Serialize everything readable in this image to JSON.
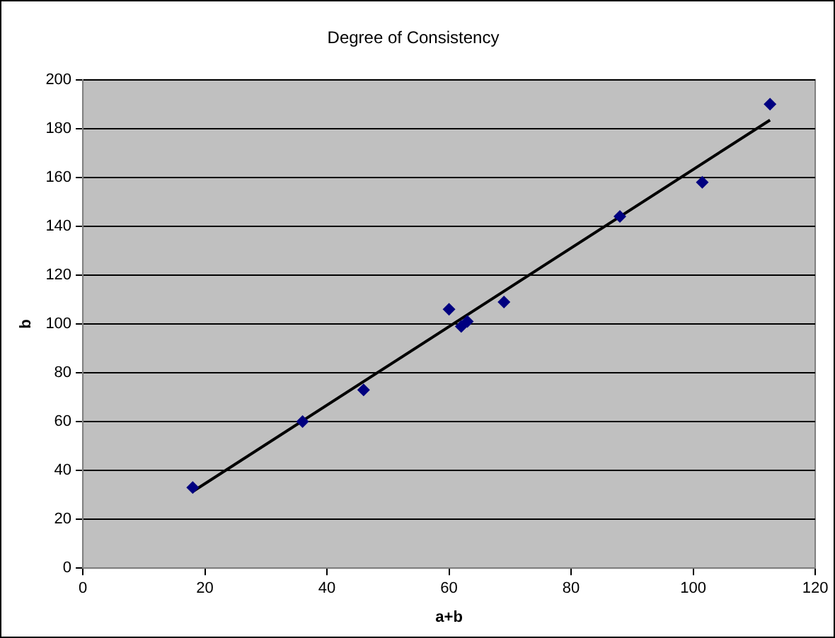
{
  "chart_data": {
    "type": "scatter",
    "title": "Degree of Consistency",
    "xlabel": "a+b",
    "ylabel": "b",
    "series": [
      {
        "color": "#000080",
        "marker": "diamond",
        "x": [
          18,
          36,
          46,
          60,
          62,
          63,
          69,
          88,
          101.5,
          112.6
        ],
        "values": [
          33,
          60,
          73,
          106,
          99,
          101,
          109,
          144,
          158,
          190
        ]
      },
      {
        "type": "line",
        "color": "#000000",
        "marker": "none",
        "line_style": "solid",
        "x": [
          17.9,
          112.6
        ],
        "values": [
          31.2,
          183.5
        ]
      }
    ],
    "xlim": [
      0,
      120
    ],
    "xticks": [
      0,
      20,
      40,
      60,
      80,
      100,
      120
    ],
    "ylim": [
      0,
      200
    ],
    "yticks": [
      0,
      20,
      40,
      60,
      80,
      100,
      120,
      140,
      160,
      180,
      200
    ],
    "grid": "y",
    "legend": false
  }
}
